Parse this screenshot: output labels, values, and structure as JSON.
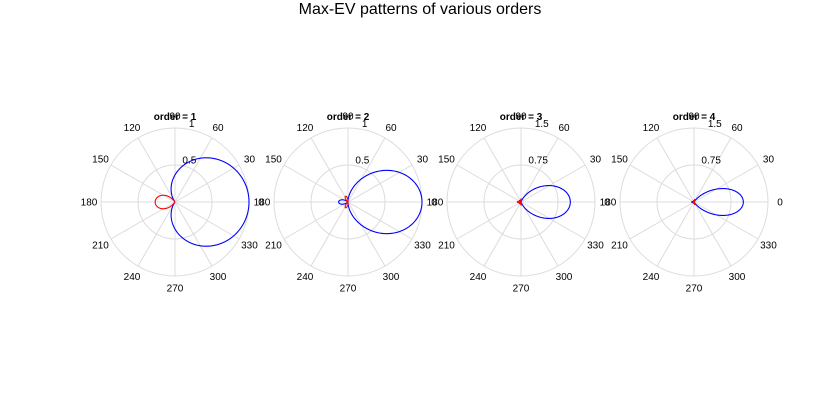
{
  "figure_title": "Max-EV patterns of various orders",
  "colors": {
    "positive_lobe": "#0000ff",
    "negative_lobe": "#ff0000",
    "grid": "#dcdcdc"
  },
  "chart_data": [
    {
      "type": "polar",
      "title": "order = 1",
      "angle_ticks": [
        "0",
        "30",
        "60",
        "90",
        "120",
        "150",
        "180",
        "210",
        "240",
        "270",
        "300",
        "330"
      ],
      "radial_ticks": [
        "0.5",
        "1"
      ],
      "rlim": [
        0,
        1
      ],
      "series": [
        {
          "formula": "max-EV cardioid",
          "order": 1,
          "peak": 1,
          "back_lobe_peak": 0.17
        }
      ]
    },
    {
      "type": "polar",
      "title": "order = 2",
      "angle_ticks": [
        "0",
        "30",
        "60",
        "90",
        "120",
        "150",
        "180",
        "210",
        "240",
        "270",
        "300",
        "330"
      ],
      "radial_ticks": [
        "0.5",
        "1"
      ],
      "rlim": [
        0,
        1
      ],
      "series": [
        {
          "order": 2,
          "peak": 1,
          "back_lobe_peak": 0.03
        }
      ]
    },
    {
      "type": "polar",
      "title": "order = 3",
      "angle_ticks": [
        "0",
        "30",
        "60",
        "90",
        "120",
        "150",
        "180",
        "210",
        "240",
        "270",
        "300",
        "330"
      ],
      "radial_ticks": [
        "0.75",
        "1.5"
      ],
      "rlim": [
        0,
        1.5
      ],
      "series": [
        {
          "order": 3,
          "peak": 1,
          "back_lobe_peak": 0.01
        }
      ]
    },
    {
      "type": "polar",
      "title": "order = 4",
      "angle_ticks": [
        "0",
        "30",
        "60",
        "90",
        "120",
        "150",
        "180",
        "210",
        "240",
        "270",
        "300",
        "330"
      ],
      "radial_ticks": [
        "0.75",
        "1.5"
      ],
      "rlim": [
        0,
        1.5
      ],
      "series": [
        {
          "order": 4,
          "peak": 1,
          "back_lobe_peak": 0.005
        }
      ]
    }
  ]
}
